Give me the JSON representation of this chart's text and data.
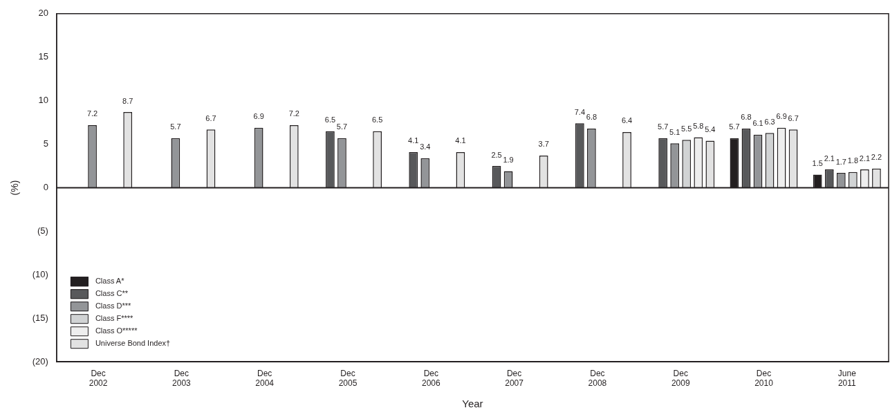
{
  "chart_data": {
    "type": "bar",
    "xlabel": "Year",
    "ylabel": "(%)",
    "categories": [
      "Dec 2002",
      "Dec 2003",
      "Dec 2004",
      "Dec 2005",
      "Dec 2006",
      "Dec 2007",
      "Dec 2008",
      "Dec 2009",
      "Dec 2010",
      "June 2011"
    ],
    "series": [
      {
        "name": "Class A*",
        "color": "#231f20",
        "values": [
          null,
          null,
          null,
          null,
          null,
          null,
          null,
          null,
          5.7,
          1.5
        ]
      },
      {
        "name": "Class C**",
        "color": "#58595b",
        "values": [
          null,
          null,
          null,
          6.5,
          4.1,
          2.5,
          7.4,
          5.7,
          6.8,
          2.1
        ]
      },
      {
        "name": "Class D***",
        "color": "#939598",
        "values": [
          7.2,
          5.7,
          6.9,
          5.7,
          3.4,
          1.9,
          6.8,
          5.1,
          6.1,
          1.7
        ]
      },
      {
        "name": "Class F****",
        "color": "#d1d3d4",
        "values": [
          null,
          null,
          null,
          null,
          null,
          null,
          null,
          5.5,
          6.3,
          1.8
        ]
      },
      {
        "name": "Class O*****",
        "color": "#eeeeee",
        "values": [
          null,
          null,
          null,
          null,
          null,
          null,
          null,
          5.8,
          6.9,
          2.1
        ]
      },
      {
        "name": "Universe Bond Index†",
        "color": "#e2e2e2",
        "values": [
          8.7,
          6.7,
          7.2,
          6.5,
          4.1,
          3.7,
          6.4,
          5.4,
          6.7,
          2.2
        ]
      }
    ],
    "ylim": [
      -20,
      20
    ],
    "yticks": [
      {
        "value": -20,
        "label": "(20)"
      },
      {
        "value": -15,
        "label": "(15)"
      },
      {
        "value": -10,
        "label": "(10)"
      },
      {
        "value": -5,
        "label": "(5)"
      },
      0,
      5,
      10,
      15,
      20
    ],
    "ref_lines": [
      {
        "axis": "y",
        "value": 0,
        "color": "#231f20"
      }
    ],
    "legend": "bottom left",
    "data_labels": true
  }
}
